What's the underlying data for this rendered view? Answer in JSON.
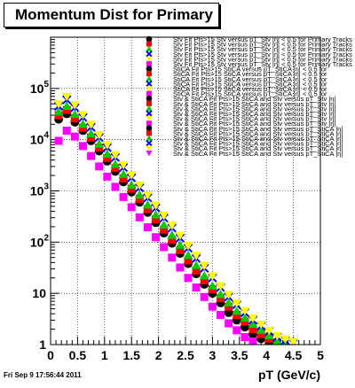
{
  "chart_data": {
    "type": "scatter",
    "title": "Momentum Dist for Primary",
    "xlabel": "pT (GeV/c)",
    "ylabel": "",
    "xlim": [
      0,
      5
    ],
    "ylim": [
      1,
      1000000
    ],
    "log_y": true,
    "grid": true,
    "legend_position": "top-right",
    "x_tick_labels": [
      "0",
      "0.5",
      "1",
      "1.5",
      "2",
      "2.5",
      "3",
      "3.5",
      "4",
      "4.5",
      "5"
    ],
    "y_tick_labels": [
      {
        "mantissa": "1",
        "exp": ""
      },
      {
        "mantissa": "10",
        "exp": ""
      },
      {
        "mantissa": "10",
        "exp": "2"
      },
      {
        "mantissa": "10",
        "exp": "3"
      },
      {
        "mantissa": "10",
        "exp": "4"
      },
      {
        "mantissa": "10",
        "exp": "5"
      }
    ],
    "x": [
      0.15,
      0.3,
      0.45,
      0.6,
      0.75,
      0.9,
      1.05,
      1.2,
      1.35,
      1.5,
      1.65,
      1.8,
      1.95,
      2.1,
      2.25,
      2.4,
      2.55,
      2.7,
      2.85,
      3.0,
      3.15,
      3.3,
      3.45,
      3.6,
      3.75,
      3.9,
      4.05,
      4.2,
      4.35,
      4.5,
      4.65,
      4.8,
      4.95
    ],
    "series": [
      {
        "color": "#000000",
        "marker": "circle",
        "values": [
          25000,
          32000,
          22000,
          15000,
          9500,
          6000,
          3800,
          2400,
          1500,
          950,
          600,
          380,
          240,
          150,
          95,
          60,
          38,
          24,
          15,
          10,
          6.5,
          4.2,
          3.0,
          2.2,
          1.6,
          1.3,
          1.1,
          null,
          null,
          null,
          null,
          null,
          null
        ]
      },
      {
        "color": "#ff0000",
        "marker": "square",
        "values": [
          30000,
          38000,
          26000,
          17000,
          11000,
          7000,
          4400,
          2800,
          1750,
          1100,
          700,
          440,
          280,
          175,
          110,
          70,
          44,
          28,
          18,
          12,
          8,
          5.5,
          3.8,
          2.8,
          2.0,
          1.6,
          1.3,
          1.1,
          null,
          null,
          null,
          null,
          null
        ]
      },
      {
        "color": "#00cc00",
        "marker": "triangle",
        "values": [
          35000,
          45000,
          31000,
          20000,
          13000,
          8200,
          5200,
          3300,
          2100,
          1300,
          830,
          530,
          340,
          215,
          136,
          87,
          55,
          35,
          22,
          14,
          9.5,
          6.5,
          4.5,
          3.3,
          2.5,
          1.9,
          1.5,
          1.2,
          1.05,
          null,
          null,
          null,
          null
        ]
      },
      {
        "color": "#0000ff",
        "marker": "cross",
        "values": [
          45000,
          60000,
          42000,
          27000,
          17500,
          11000,
          7000,
          4500,
          2850,
          1800,
          1150,
          730,
          465,
          295,
          188,
          120,
          76,
          48,
          31,
          20,
          13,
          8.5,
          6.0,
          4.2,
          3.0,
          2.3,
          1.8,
          1.4,
          1.2,
          1.05,
          null,
          null,
          null
        ]
      },
      {
        "color": "#ffff00",
        "marker": "triangle-down",
        "values": [
          50000,
          70000,
          48000,
          31000,
          20000,
          12500,
          8000,
          5100,
          3250,
          2050,
          1300,
          830,
          530,
          335,
          213,
          136,
          86,
          55,
          35,
          22,
          14,
          9.5,
          6.5,
          4.6,
          3.3,
          2.5,
          1.9,
          1.5,
          1.3,
          1.15,
          null,
          null,
          null
        ]
      },
      {
        "color": "#ff00ff",
        "marker": "square",
        "values": [
          9500,
          15000,
          11500,
          7500,
          4800,
          3000,
          1900,
          1200,
          760,
          480,
          305,
          195,
          125,
          80,
          50,
          32,
          20,
          13,
          8.5,
          5.5,
          3.8,
          2.6,
          1.9,
          1.4,
          1.15,
          null,
          null,
          null,
          null,
          null,
          null,
          null,
          null
        ]
      }
    ],
    "legend_entries": [
      {
        "color": "#000000",
        "marker": "circle",
        "label": "Stv Fit Pts>15 Stv versus pT_Stv |η| < 0.5 for Primary Tracks"
      },
      {
        "color": "#ff0000",
        "marker": "square",
        "label": "Stv Fit Pts>15 Stv versus pT_Stv |η| < 0.5 for Primary Tracks"
      },
      {
        "color": "#00cc00",
        "marker": "triangle",
        "label": "Stv Fit Pts>15 Stv versus pT_Stv |η| < 0.5 for Primary Tracks"
      },
      {
        "color": "#0000ff",
        "marker": "cross",
        "label": "Stv Fit Pts>15 Stv versus pT_Stv |η| < 0.5 for Primary Tracks"
      },
      {
        "color": "#ffff00",
        "marker": "triangle-down",
        "label": "Stv Fit Pts>15 Stv versus pT_Stv |η| < 0.5 for Primary Tracks"
      },
      {
        "color": "#ff00ff",
        "marker": "square",
        "label": "Stv Fit Pts>15 Stv versus pT_Stv |η| < 0.5 for Primary Tracks"
      },
      {
        "color": "#000000",
        "marker": "circle",
        "label": "StiCA Fit Pts>15 StiCA versus pT_StiCA |η| < 0.5 for"
      },
      {
        "color": "#ff0000",
        "marker": "square",
        "label": "StiCA Fit Pts>15 StiCA versus pT_StiCA |η| < 0.5 for"
      },
      {
        "color": "#00cc00",
        "marker": "triangle",
        "label": "StiCA Fit Pts>15 StiCA versus pT_StiCA |η| < 0.5 for"
      },
      {
        "color": "#0000ff",
        "marker": "cross",
        "label": "StiCA Fit Pts>15 StiCA versus pT_StiCA |η| < 0.5 for"
      },
      {
        "color": "#ffff00",
        "marker": "triangle-down",
        "label": "StiCA Fit Pts>15 StiCA versus pT_StiCA |η| < 0.5 for"
      },
      {
        "color": "#ff00ff",
        "marker": "square",
        "label": "StiCA Fit Pts>15 StiCA versus pT_StiCA |η| < 0.5 for"
      },
      {
        "color": "#000000",
        "marker": "circle",
        "label": "Stv & StiCA Fit Pts>15 StiCA and Stv versus pT_Stv |η|"
      },
      {
        "color": "#ff0000",
        "marker": "square",
        "label": "Stv & StiCA Fit Pts>15 StiCA and Stv versus pT_Stv |η|"
      },
      {
        "color": "#00cc00",
        "marker": "triangle",
        "label": "Stv & StiCA Fit Pts>15 StiCA and Stv versus pT_Stv |η|"
      },
      {
        "color": "#0000ff",
        "marker": "cross",
        "label": "Stv & StiCA Fit Pts>15 StiCA and Stv versus pT_Stv |η|"
      },
      {
        "color": "#ffff00",
        "marker": "triangle-down",
        "label": "Stv & StiCA Fit Pts>15 StiCA and Stv versus pT_Stv |η|"
      },
      {
        "color": "#ff00ff",
        "marker": "square",
        "label": "Stv & StiCA Fit Pts>15 StiCA and Stv versus pT_Stv |η|"
      },
      {
        "color": "#000000",
        "marker": "circle",
        "label": "Stv & StiCA Fit Pts>15 StiCA and Stv versus pT_StiCA |η|"
      },
      {
        "color": "#ff0000",
        "marker": "square",
        "label": "Stv & StiCA Fit Pts>15 StiCA and Stv versus pT_StiCA |η|"
      },
      {
        "color": "#00cc00",
        "marker": "triangle",
        "label": "Stv & StiCA Fit Pts>15 StiCA and Stv versus pT_StiCA |η|"
      },
      {
        "color": "#0000ff",
        "marker": "cross",
        "label": "Stv & StiCA Fit Pts>15 StiCA and Stv versus pT_StiCA |η|"
      },
      {
        "color": "#ffff00",
        "marker": "triangle-down",
        "label": "Stv & StiCA Fit Pts>15 StiCA and Stv versus pT_StiCA |η|"
      },
      {
        "color": "#ff00ff",
        "marker": "triangle-down",
        "label": "Stv & StiCA Fit Pts>15 StiCA and Stv versus pT_StiCA |η|"
      }
    ]
  },
  "footer": {
    "timestamp": "Fri Sep  9 17:56:44 2011"
  }
}
